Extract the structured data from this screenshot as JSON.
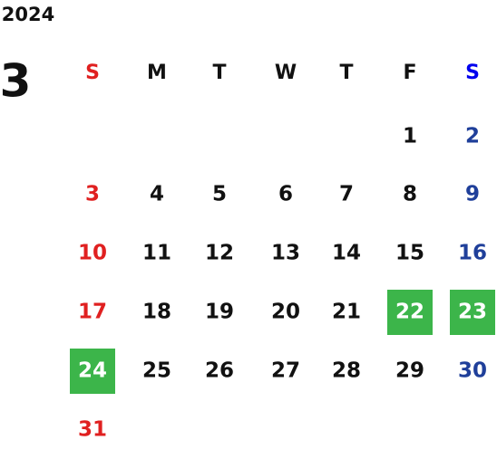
{
  "year": "2024",
  "month": "3",
  "weekdays": [
    "S",
    "M",
    "T",
    "W",
    "T",
    "F",
    "S"
  ],
  "weeks": [
    [
      null,
      null,
      null,
      null,
      null,
      "1",
      "2"
    ],
    [
      "3",
      "4",
      "5",
      "6",
      "7",
      "8",
      "9"
    ],
    [
      "10",
      "11",
      "12",
      "13",
      "14",
      "15",
      "16"
    ],
    [
      "17",
      "18",
      "19",
      "20",
      "21",
      "22",
      "23"
    ],
    [
      "24",
      "25",
      "26",
      "27",
      "28",
      "29",
      "30"
    ],
    [
      "31",
      null,
      null,
      null,
      null,
      null,
      null
    ]
  ],
  "highlighted": [
    [
      3,
      5
    ],
    [
      3,
      6
    ],
    [
      4,
      0
    ]
  ],
  "colors": {
    "sunday": "#e02020",
    "saturday_header": "#0000ee",
    "saturday": "#1f3f9a",
    "weekday": "#111111",
    "highlight": "#3cb54a"
  }
}
